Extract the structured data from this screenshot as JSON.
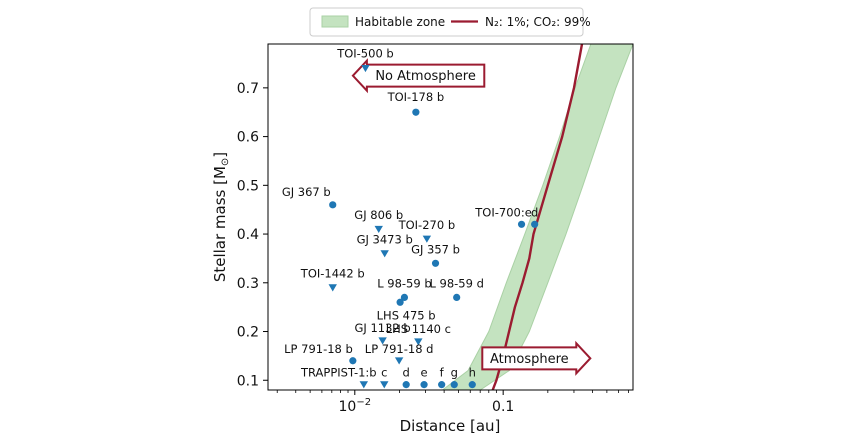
{
  "chart_data": {
    "type": "scatter",
    "xlabel": "Distance [au]",
    "ylabel": "Stellar mass [M",
    "ylabel_sub": "⊙",
    "ylabel_close": "]",
    "x_scale": "log",
    "xlim": [
      0.0026,
      0.75
    ],
    "ylim": [
      0.08,
      0.79
    ],
    "x_ticks": [
      {
        "value": 0.01,
        "base": "10",
        "exp": "−2"
      },
      {
        "value": 0.1,
        "label": "0.1"
      }
    ],
    "y_ticks": [
      {
        "value": 0.1,
        "label": "0.1"
      },
      {
        "value": 0.2,
        "label": "0.2"
      },
      {
        "value": 0.3,
        "label": "0.3"
      },
      {
        "value": 0.4,
        "label": "0.4"
      },
      {
        "value": 0.5,
        "label": "0.5"
      },
      {
        "value": 0.6,
        "label": "0.6"
      },
      {
        "value": 0.7,
        "label": "0.7"
      }
    ],
    "legend": {
      "placement": "top-center",
      "entries": [
        {
          "label": "Habitable zone",
          "kind": "patch",
          "color": "#c4e3c0"
        },
        {
          "label": "N₂: 1%; CO₂: 99%",
          "kind": "line",
          "color": "#9b1b30"
        }
      ]
    },
    "colors": {
      "circle": "#1f77b4",
      "triangle": "#1f77b4",
      "hz_fill": "#c4e3c0",
      "hz_edge": "#aad1a5",
      "boundary": "#9b1b30",
      "arrow_edge": "#9b1b30"
    },
    "habitable_zone": {
      "inner": [
        [
          0.039,
          0.08
        ],
        [
          0.058,
          0.12
        ],
        [
          0.08,
          0.2
        ],
        [
          0.105,
          0.3
        ],
        [
          0.14,
          0.4
        ],
        [
          0.185,
          0.5
        ],
        [
          0.24,
          0.6
        ],
        [
          0.305,
          0.7
        ],
        [
          0.39,
          0.79
        ]
      ],
      "outer": [
        [
          0.07,
          0.08
        ],
        [
          0.11,
          0.12
        ],
        [
          0.15,
          0.2
        ],
        [
          0.2,
          0.3
        ],
        [
          0.265,
          0.4
        ],
        [
          0.345,
          0.5
        ],
        [
          0.445,
          0.6
        ],
        [
          0.575,
          0.7
        ],
        [
          0.75,
          0.79
        ]
      ]
    },
    "boundary_line": {
      "name": "N₂: 1%; CO₂: 99%",
      "points": [
        [
          0.085,
          0.08
        ],
        [
          0.09,
          0.1
        ],
        [
          0.1,
          0.15
        ],
        [
          0.12,
          0.25
        ],
        [
          0.135,
          0.3
        ],
        [
          0.15,
          0.35
        ],
        [
          0.16,
          0.4
        ],
        [
          0.2,
          0.5
        ],
        [
          0.25,
          0.6
        ],
        [
          0.3,
          0.7
        ],
        [
          0.34,
          0.79
        ]
      ]
    },
    "regions": [
      {
        "label": "No Atmosphere",
        "direction": "left",
        "x_data": 0.03,
        "y_data": 0.725
      },
      {
        "label": "Atmosphere",
        "direction": "right",
        "x_data": 0.15,
        "y_data": 0.145
      }
    ],
    "planets": [
      {
        "name": "TOI-500 b",
        "marker": "triangle",
        "x": 0.0118,
        "y": 0.74,
        "label_anchor": "middle",
        "label_dx": 0,
        "label_dy": -11
      },
      {
        "name": "TOI-178 b",
        "marker": "circle",
        "x": 0.0258,
        "y": 0.65,
        "label_anchor": "middle",
        "label_dx": 0,
        "label_dy": -11
      },
      {
        "name": "GJ 367 b",
        "marker": "circle",
        "x": 0.0071,
        "y": 0.46,
        "label_anchor": "end",
        "label_dx": -2,
        "label_dy": -9
      },
      {
        "name": "GJ 806 b",
        "marker": "triangle",
        "x": 0.0145,
        "y": 0.41,
        "label_anchor": "middle",
        "label_dx": 0,
        "label_dy": -10
      },
      {
        "name": "TOI-270 b",
        "marker": "triangle",
        "x": 0.0306,
        "y": 0.39,
        "label_anchor": "middle",
        "label_dx": 0,
        "label_dy": -10
      },
      {
        "name": "GJ 3473 b",
        "marker": "triangle",
        "x": 0.0159,
        "y": 0.36,
        "label_anchor": "middle",
        "label_dx": 0,
        "label_dy": -10
      },
      {
        "name": "GJ 357 b",
        "marker": "circle",
        "x": 0.035,
        "y": 0.34,
        "label_anchor": "middle",
        "label_dx": 0,
        "label_dy": -10
      },
      {
        "name": "TOI-1442 b",
        "marker": "triangle",
        "x": 0.0071,
        "y": 0.29,
        "label_anchor": "middle",
        "label_dx": 0,
        "label_dy": -10
      },
      {
        "name": "L 98-59 b",
        "marker": "circle",
        "x": 0.0216,
        "y": 0.27,
        "label_anchor": "middle",
        "label_dx": 0,
        "label_dy": -10
      },
      {
        "name": "L 98-59 d",
        "marker": "circle",
        "x": 0.0486,
        "y": 0.27,
        "label_anchor": "middle",
        "label_dx": 0,
        "label_dy": -10
      },
      {
        "name": "LHS 475 b",
        "marker": "circle",
        "x": 0.0202,
        "y": 0.26,
        "label_anchor": "middle",
        "label_dx": 6,
        "label_dy": 17
      },
      {
        "name": "GJ 1132 b",
        "marker": "triangle",
        "x": 0.0154,
        "y": 0.181,
        "label_anchor": "middle",
        "label_dx": 0,
        "label_dy": -9
      },
      {
        "name": "LHS 1140 c",
        "marker": "triangle",
        "x": 0.0268,
        "y": 0.179,
        "label_anchor": "middle",
        "label_dx": 0,
        "label_dy": -9
      },
      {
        "name": "LP 791-18 b",
        "marker": "circle",
        "x": 0.0097,
        "y": 0.14,
        "label_anchor": "end",
        "label_dx": 0,
        "label_dy": -8
      },
      {
        "name": "LP 791-18 d",
        "marker": "triangle",
        "x": 0.0199,
        "y": 0.14,
        "label_anchor": "middle",
        "label_dx": 0,
        "label_dy": -8
      },
      {
        "name": "TOI-700:e",
        "marker": "circle",
        "x": 0.133,
        "y": 0.42,
        "label_anchor": "middle",
        "label_dx": -18,
        "label_dy": -8
      },
      {
        "name": "d",
        "marker": "circle",
        "x": 0.163,
        "y": 0.42,
        "label_anchor": "middle",
        "label_dx": 0,
        "label_dy": -8
      },
      {
        "name": "TRAPPIST-1:b",
        "marker": "triangle",
        "x": 0.0115,
        "y": 0.091,
        "label_anchor": "middle",
        "label_dx": -25,
        "label_dy": -8
      },
      {
        "name": "c",
        "marker": "triangle",
        "x": 0.0158,
        "y": 0.091,
        "label_anchor": "middle",
        "label_dx": 0,
        "label_dy": -8
      },
      {
        "name": "d",
        "marker": "circle",
        "x": 0.0222,
        "y": 0.091,
        "label_anchor": "middle",
        "label_dx": 0,
        "label_dy": -8
      },
      {
        "name": "e",
        "marker": "circle",
        "x": 0.0293,
        "y": 0.091,
        "label_anchor": "middle",
        "label_dx": 0,
        "label_dy": -8
      },
      {
        "name": "f",
        "marker": "circle",
        "x": 0.0385,
        "y": 0.091,
        "label_anchor": "middle",
        "label_dx": 0,
        "label_dy": -8
      },
      {
        "name": "g",
        "marker": "circle",
        "x": 0.0468,
        "y": 0.091,
        "label_anchor": "middle",
        "label_dx": 0,
        "label_dy": -8
      },
      {
        "name": "h",
        "marker": "circle",
        "x": 0.0619,
        "y": 0.091,
        "label_anchor": "middle",
        "label_dx": 0,
        "label_dy": -8
      }
    ]
  }
}
